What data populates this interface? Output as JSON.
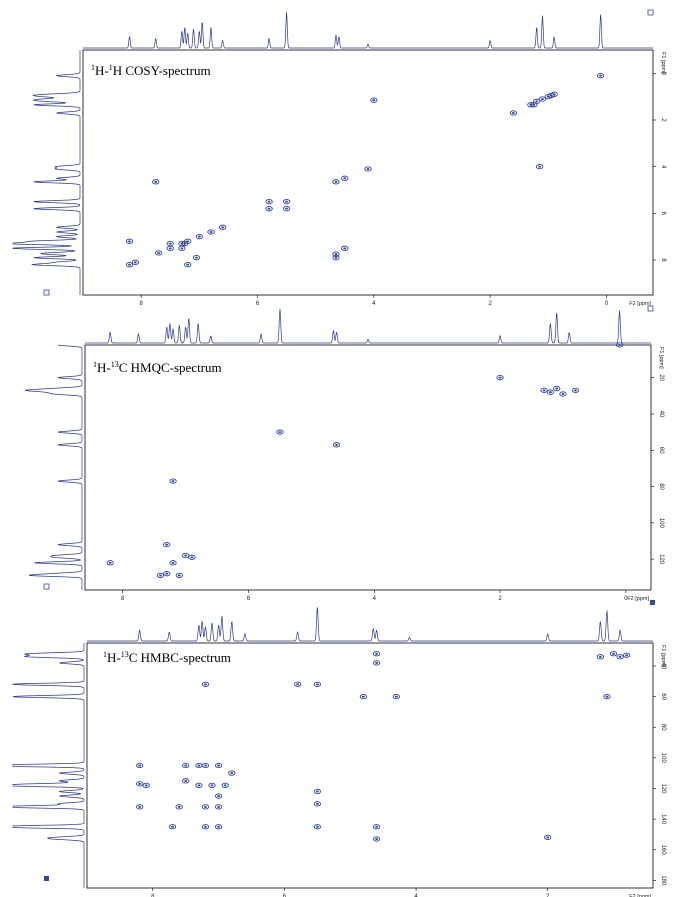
{
  "colors": {
    "trace": "#2b3a8f",
    "peak": "#3548a0",
    "frame": "#000000",
    "marker": "#2f49a7"
  },
  "panels": [
    {
      "id": "cosy",
      "title": {
        "pre": "1",
        "a": "H-",
        "sup2": "1",
        "b": "H COSY-spectrum"
      },
      "f2_label": "F2 [ppm]",
      "f1_label": "F1 [ppm]",
      "x_ticks": [
        "8",
        "6",
        "4",
        "2",
        "0"
      ],
      "y_ticks": [
        "0",
        "2",
        "4",
        "6",
        "8"
      ],
      "corner_marker": "open-square",
      "peaks": [
        [
          0.1,
          0.1
        ],
        [
          1.1,
          1.1
        ],
        [
          1.25,
          1.35
        ],
        [
          1.0,
          1.0
        ],
        [
          0.9,
          0.9
        ],
        [
          1.6,
          1.7
        ],
        [
          4.1,
          4.1
        ],
        [
          4.65,
          4.65
        ],
        [
          4.5,
          4.5
        ],
        [
          5.5,
          5.5
        ],
        [
          5.8,
          5.8
        ],
        [
          6.8,
          6.8
        ],
        [
          7.2,
          7.2
        ],
        [
          7.0,
          7.0
        ],
        [
          7.3,
          7.3
        ],
        [
          7.5,
          7.5
        ],
        [
          8.1,
          8.1
        ],
        [
          8.2,
          8.2
        ],
        [
          7.7,
          7.7
        ],
        [
          7.75,
          4.65
        ],
        [
          4.65,
          7.75
        ],
        [
          4.0,
          1.15
        ],
        [
          1.15,
          4.0
        ],
        [
          8.2,
          7.2
        ],
        [
          7.2,
          8.2
        ],
        [
          7.3,
          7.5
        ],
        [
          7.5,
          7.3
        ],
        [
          5.8,
          5.5
        ],
        [
          5.5,
          5.8
        ],
        [
          4.65,
          7.9
        ],
        [
          4.5,
          7.5
        ],
        [
          1.3,
          1.35
        ],
        [
          1.2,
          1.2
        ],
        [
          0.95,
          0.95
        ],
        [
          6.6,
          6.6
        ],
        [
          7.05,
          7.9
        ],
        [
          7.25,
          7.3
        ]
      ]
    },
    {
      "id": "hmqc",
      "title": {
        "pre": "1",
        "a": "H-",
        "sup2": "13",
        "b": "C HMQC-spectrum"
      },
      "f2_label": "F2 [ppm]",
      "f1_label": "F1 [ppm]",
      "x_ticks": [
        "8",
        "6",
        "4",
        "2",
        "0"
      ],
      "y_ticks": [
        "20",
        "40",
        "60",
        "80",
        "100",
        "120"
      ],
      "corner_marker": "open-square",
      "peaks": [
        [
          0.1,
          2
        ],
        [
          1.1,
          26
        ],
        [
          1.2,
          28
        ],
        [
          1.3,
          27
        ],
        [
          0.8,
          27
        ],
        [
          1.0,
          29
        ],
        [
          2.0,
          20
        ],
        [
          5.5,
          50
        ],
        [
          4.6,
          57
        ],
        [
          7.2,
          77
        ],
        [
          7.3,
          112
        ],
        [
          7.0,
          118
        ],
        [
          7.3,
          128
        ],
        [
          7.2,
          122
        ],
        [
          8.2,
          122
        ],
        [
          7.1,
          129
        ],
        [
          6.9,
          119
        ],
        [
          7.4,
          129
        ]
      ]
    },
    {
      "id": "hmbc",
      "title": {
        "pre": "1",
        "a": "H-",
        "sup2": "13",
        "b": "C HMBC-spectrum"
      },
      "f2_label": "F2 [ppm]",
      "f1_label": "F1 [ppm]",
      "x_ticks": [
        "8",
        "6",
        "4",
        "2"
      ],
      "y_ticks": [
        "40",
        "60",
        "80",
        "100",
        "120",
        "140",
        "160",
        "180"
      ],
      "corner_marker": "filled-square",
      "peaks": [
        [
          1.0,
          32
        ],
        [
          0.9,
          34
        ],
        [
          1.2,
          34
        ],
        [
          0.8,
          33
        ],
        [
          1.1,
          60
        ],
        [
          4.6,
          32
        ],
        [
          4.6,
          38
        ],
        [
          7.2,
          52
        ],
        [
          5.8,
          52
        ],
        [
          5.5,
          52
        ],
        [
          4.8,
          60
        ],
        [
          4.3,
          60
        ],
        [
          8.2,
          105
        ],
        [
          8.2,
          117
        ],
        [
          8.2,
          132
        ],
        [
          7.5,
          105
        ],
        [
          7.3,
          105
        ],
        [
          7.2,
          105
        ],
        [
          7.0,
          105
        ],
        [
          6.8,
          110
        ],
        [
          7.5,
          115
        ],
        [
          7.3,
          118
        ],
        [
          7.1,
          118
        ],
        [
          7.0,
          125
        ],
        [
          6.9,
          118
        ],
        [
          7.6,
          132
        ],
        [
          7.2,
          132
        ],
        [
          7.0,
          132
        ],
        [
          5.5,
          122
        ],
        [
          5.5,
          130
        ],
        [
          5.5,
          145
        ],
        [
          7.7,
          145
        ],
        [
          7.2,
          145
        ],
        [
          7.0,
          145
        ],
        [
          4.6,
          145
        ],
        [
          4.6,
          153
        ],
        [
          2.0,
          152
        ],
        [
          8.1,
          118
        ]
      ]
    }
  ]
}
